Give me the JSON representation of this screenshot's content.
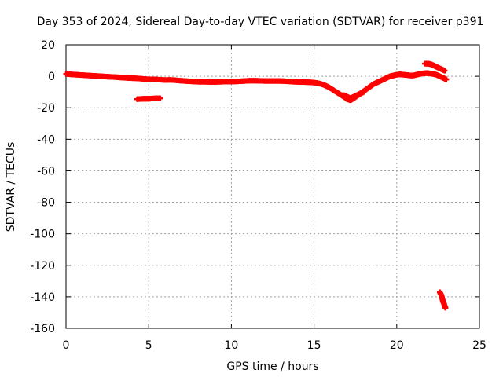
{
  "chart_data": {
    "type": "scatter",
    "title": "Day 353 of 2024, Sidereal Day-to-day VTEC variation (SDTVAR) for receiver p391",
    "xlabel": "GPS time / hours",
    "ylabel": "SDTVAR / TECUs",
    "xlim": [
      0,
      25
    ],
    "ylim": [
      -160,
      20
    ],
    "xticks": [
      0,
      5,
      10,
      15,
      20,
      25
    ],
    "yticks": [
      20,
      0,
      -20,
      -40,
      -60,
      -80,
      -100,
      -120,
      -140,
      -160
    ],
    "grid": true,
    "marker": "plus",
    "color": "#ff0000",
    "series": [
      {
        "name": "main",
        "x": [
          0.0,
          0.3,
          0.6,
          0.9,
          1.2,
          1.5,
          1.8,
          2.1,
          2.4,
          2.7,
          3.0,
          3.3,
          3.6,
          3.9,
          4.2,
          4.5,
          4.8,
          5.1,
          5.4,
          5.7,
          6.0,
          6.3,
          6.6,
          6.9,
          7.2,
          7.5,
          7.8,
          8.1,
          8.4,
          8.7,
          9.0,
          9.3,
          9.6,
          9.9,
          10.2,
          10.5,
          10.8,
          11.1,
          11.4,
          11.7,
          12.0,
          12.3,
          12.6,
          12.9,
          13.2,
          13.5,
          13.8,
          14.1,
          14.4,
          14.7,
          15.0,
          15.3,
          15.6,
          15.9,
          16.2,
          16.5,
          16.8,
          17.0,
          17.2,
          17.4,
          17.6,
          17.8,
          18.0,
          18.2,
          18.4,
          18.6,
          18.8,
          19.0,
          19.2,
          19.4,
          19.6,
          19.8,
          20.0,
          20.2,
          20.4,
          20.6,
          20.8,
          21.0,
          21.2,
          21.4,
          21.6,
          21.8,
          22.0,
          22.2,
          22.4,
          22.6,
          22.8,
          23.0
        ],
        "y": [
          1.5,
          1.2,
          1.0,
          0.8,
          0.6,
          0.4,
          0.2,
          0.0,
          -0.2,
          -0.4,
          -0.5,
          -0.8,
          -1.0,
          -1.2,
          -1.3,
          -1.5,
          -1.8,
          -2.0,
          -2.0,
          -2.2,
          -2.4,
          -2.3,
          -2.5,
          -2.8,
          -3.0,
          -3.2,
          -3.4,
          -3.5,
          -3.5,
          -3.6,
          -3.6,
          -3.5,
          -3.4,
          -3.4,
          -3.3,
          -3.2,
          -3.0,
          -2.8,
          -2.8,
          -2.9,
          -3.0,
          -3.0,
          -3.0,
          -3.0,
          -3.1,
          -3.3,
          -3.5,
          -3.6,
          -3.7,
          -3.8,
          -4.0,
          -4.5,
          -5.5,
          -7.0,
          -9.0,
          -11.0,
          -13.0,
          -14.5,
          -15.2,
          -14.0,
          -12.5,
          -11.0,
          -9.5,
          -8.0,
          -6.5,
          -5.0,
          -4.0,
          -3.0,
          -2.0,
          -1.0,
          0.0,
          0.5,
          1.0,
          1.2,
          1.0,
          0.8,
          0.5,
          0.5,
          1.0,
          1.5,
          1.8,
          2.0,
          1.8,
          1.5,
          1.0,
          0.0,
          -1.0,
          -2.0
        ]
      },
      {
        "name": "lower-branch",
        "x": [
          4.3,
          4.5,
          4.7,
          4.9,
          5.1,
          5.3,
          5.5,
          5.7
        ],
        "y": [
          -14.5,
          -14.4,
          -14.3,
          -14.3,
          -14.2,
          -14.1,
          -14.0,
          -14.0
        ]
      },
      {
        "name": "upper-branch",
        "x": [
          16.8,
          17.0,
          17.2,
          17.4,
          17.6,
          17.8,
          18.0
        ],
        "y": [
          -12.0,
          -13.0,
          -14.0,
          -13.0,
          -12.0,
          -11.0,
          -10.0
        ]
      },
      {
        "name": "late-high",
        "x": [
          21.7,
          21.9,
          22.1,
          22.3,
          22.5,
          22.7,
          22.9
        ],
        "y": [
          8.0,
          8.0,
          7.5,
          6.5,
          5.5,
          4.5,
          3.5
        ]
      },
      {
        "name": "late-drop",
        "x": [
          22.6,
          22.7,
          22.75,
          22.8,
          22.85,
          22.9,
          22.95
        ],
        "y": [
          -137,
          -139,
          -141,
          -143,
          -144,
          -146,
          -147
        ]
      }
    ]
  }
}
